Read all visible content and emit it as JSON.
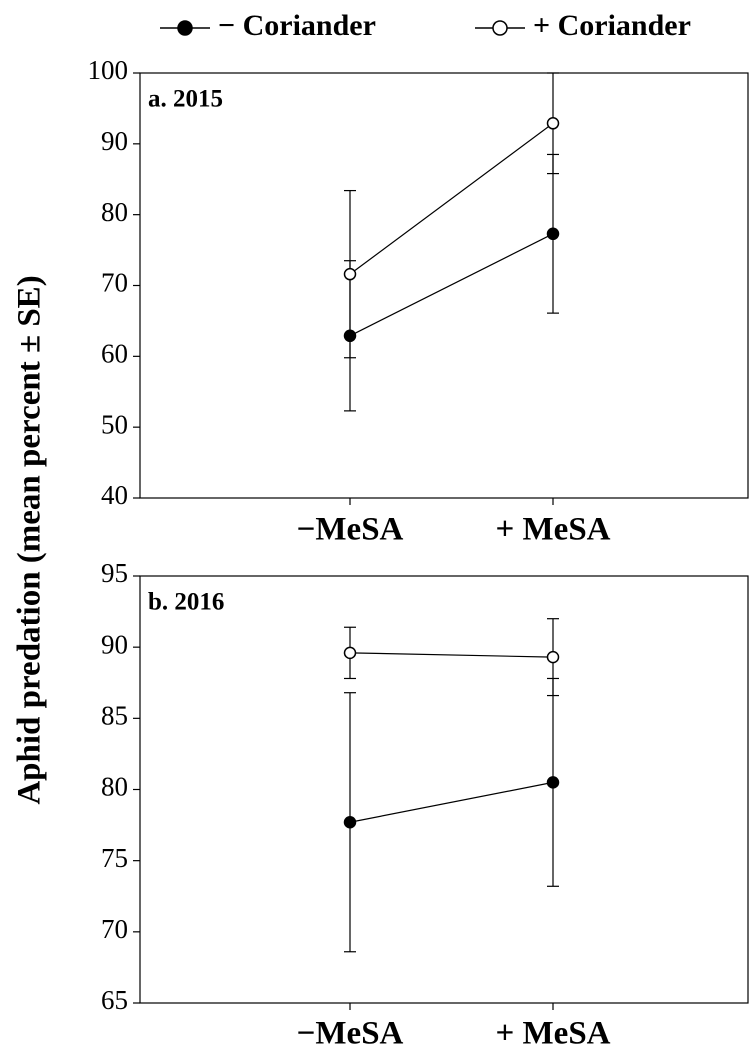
{
  "ylabel": "Aphid predation (mean percent ± SE)",
  "chart_data": [
    {
      "type": "line",
      "title": "a. 2015",
      "categories": [
        "−MeSA",
        "+ MeSA"
      ],
      "series": [
        {
          "name": "− Coriander",
          "color": "#000000",
          "fill": "#000000",
          "values": [
            62.9,
            77.3
          ],
          "errors": [
            10.6,
            11.2
          ]
        },
        {
          "name": "+ Coriander",
          "color": "#000000",
          "fill": "#ffffff",
          "values": [
            71.6,
            92.9
          ],
          "errors": [
            11.8,
            7.1
          ]
        }
      ],
      "ylim": [
        40,
        100
      ],
      "yticks": [
        40,
        50,
        60,
        70,
        80,
        90,
        100
      ]
    },
    {
      "type": "line",
      "title": "b. 2016",
      "categories": [
        "−MeSA",
        "+ MeSA"
      ],
      "series": [
        {
          "name": "− Coriander",
          "color": "#000000",
          "fill": "#000000",
          "values": [
            77.7,
            80.5
          ],
          "errors": [
            9.1,
            7.3
          ]
        },
        {
          "name": "+ Coriander",
          "color": "#000000",
          "fill": "#ffffff",
          "values": [
            89.6,
            89.3
          ],
          "errors": [
            1.8,
            2.7
          ]
        }
      ],
      "ylim": [
        65,
        95
      ],
      "yticks": [
        65,
        70,
        75,
        80,
        85,
        90,
        95
      ]
    }
  ]
}
